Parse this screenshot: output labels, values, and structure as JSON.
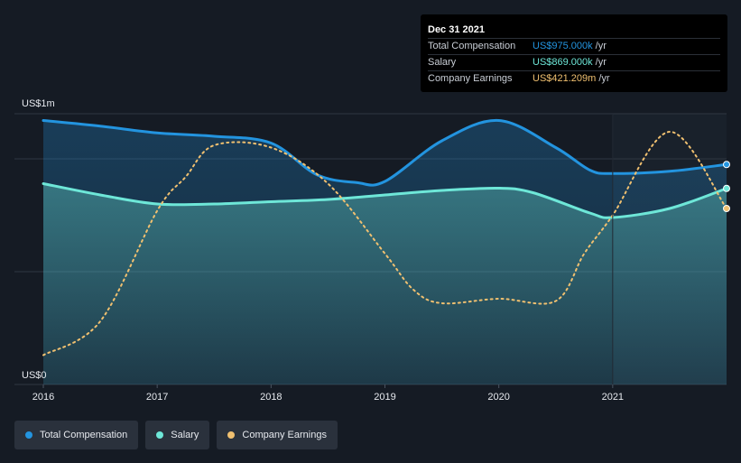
{
  "colors": {
    "background": "#151b24",
    "total_compensation": "#2394df",
    "salary": "#6ee7d8",
    "company_earnings": "#f0c070",
    "grid": "#2f3742",
    "forecast_shade": "#19212b"
  },
  "tooltip": {
    "date": "Dec 31 2021",
    "rows": [
      {
        "label": "Total Compensation",
        "value": "US$975.000k",
        "unit": "/yr",
        "color": "#2394df"
      },
      {
        "label": "Salary",
        "value": "US$869.000k",
        "unit": "/yr",
        "color": "#6ee7d8"
      },
      {
        "label": "Company Earnings",
        "value": "US$421.209m",
        "unit": "/yr",
        "color": "#f0c070"
      }
    ]
  },
  "legend": [
    {
      "label": "Total Compensation",
      "color": "#2394df"
    },
    {
      "label": "Salary",
      "color": "#6ee7d8"
    },
    {
      "label": "Company Earnings",
      "color": "#f0c070"
    }
  ],
  "chart_data": {
    "type": "line",
    "y_tick_labels": [
      "US$0",
      "US$1m"
    ],
    "ylim": [
      0,
      1200000
    ],
    "x_tick_labels": [
      "2016",
      "2017",
      "2018",
      "2019",
      "2020",
      "2021"
    ],
    "xlim": [
      2016,
      2022
    ],
    "highlight_from": 2021,
    "grid": true,
    "legend_position": "bottom-left",
    "series": [
      {
        "name": "Total Compensation",
        "color": "#2394df",
        "area": true,
        "points": [
          [
            2016.0,
            1170000
          ],
          [
            2016.5,
            1145000
          ],
          [
            2017.0,
            1115000
          ],
          [
            2017.5,
            1100000
          ],
          [
            2018.0,
            1070000
          ],
          [
            2018.4,
            930000
          ],
          [
            2018.75,
            895000
          ],
          [
            2019.0,
            900000
          ],
          [
            2019.5,
            1080000
          ],
          [
            2020.0,
            1170000
          ],
          [
            2020.5,
            1050000
          ],
          [
            2020.8,
            950000
          ],
          [
            2021.0,
            935000
          ],
          [
            2021.5,
            945000
          ],
          [
            2022.0,
            975000
          ]
        ]
      },
      {
        "name": "Salary",
        "color": "#6ee7d8",
        "area": true,
        "points": [
          [
            2016.0,
            890000
          ],
          [
            2016.5,
            840000
          ],
          [
            2017.0,
            800000
          ],
          [
            2017.5,
            800000
          ],
          [
            2018.0,
            810000
          ],
          [
            2018.5,
            820000
          ],
          [
            2019.0,
            840000
          ],
          [
            2019.5,
            860000
          ],
          [
            2020.0,
            870000
          ],
          [
            2020.3,
            850000
          ],
          [
            2020.8,
            760000
          ],
          [
            2021.0,
            740000
          ],
          [
            2021.5,
            780000
          ],
          [
            2022.0,
            869000
          ]
        ]
      },
      {
        "name": "Company Earnings",
        "color": "#f0c070",
        "dashed": true,
        "area": false,
        "points": [
          [
            2016.0,
            130000
          ],
          [
            2016.5,
            280000
          ],
          [
            2017.0,
            770000
          ],
          [
            2017.25,
            920000
          ],
          [
            2017.5,
            1060000
          ],
          [
            2018.0,
            1050000
          ],
          [
            2018.5,
            890000
          ],
          [
            2019.0,
            580000
          ],
          [
            2019.25,
            420000
          ],
          [
            2019.5,
            360000
          ],
          [
            2020.0,
            380000
          ],
          [
            2020.5,
            370000
          ],
          [
            2020.75,
            580000
          ],
          [
            2021.0,
            750000
          ],
          [
            2021.5,
            1120000
          ],
          [
            2022.0,
            780000
          ]
        ]
      }
    ]
  }
}
